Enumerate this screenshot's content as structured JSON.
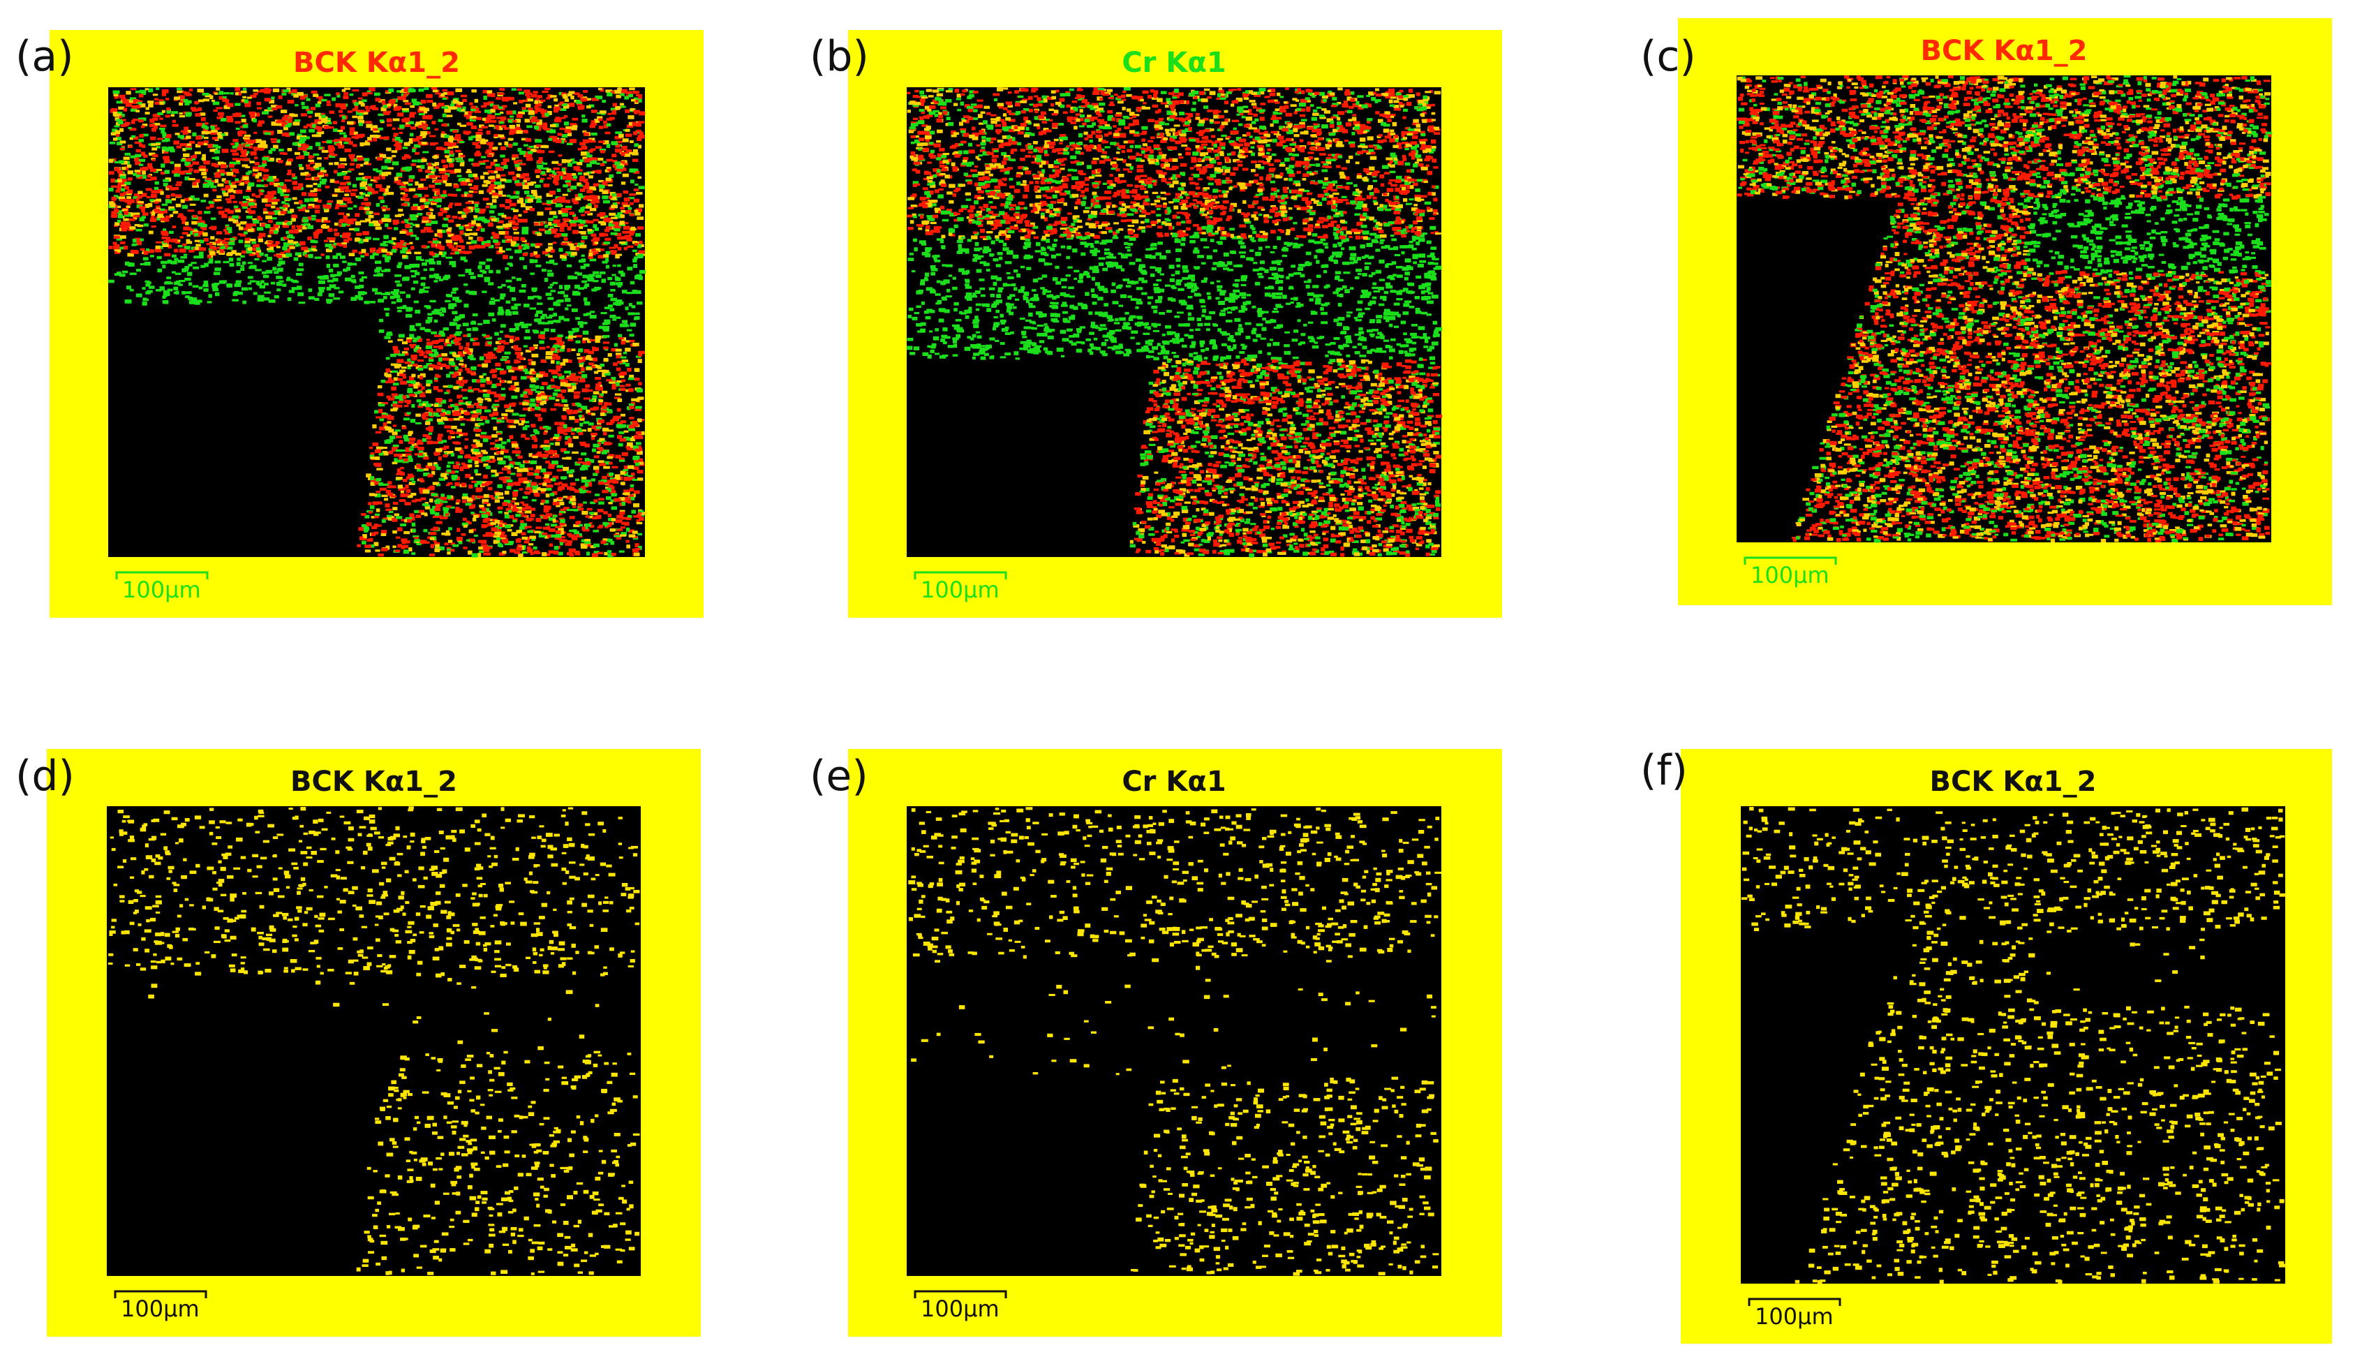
{
  "panels": [
    {
      "label": "(a)",
      "title": "BCK Kα1_2",
      "scale": "100µm"
    },
    {
      "label": "(b)",
      "title": "Cr Kα1",
      "scale": "100µm"
    },
    {
      "label": "(c)",
      "title": "BCK Kα1_2",
      "scale": "100µm"
    },
    {
      "label": "(d)",
      "title": "BCK Kα1_2",
      "scale": "100µm"
    },
    {
      "label": "(e)",
      "title": "Cr Kα1",
      "scale": "100µm"
    },
    {
      "label": "(f)",
      "title": "BCK Kα1_2",
      "scale": "100µm"
    }
  ]
}
